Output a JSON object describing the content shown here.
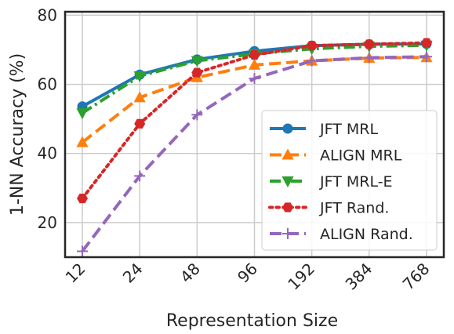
{
  "chart_data": {
    "type": "line",
    "xlabel": "Representation Size",
    "ylabel": "1-NN Accuracy (%)",
    "categories": [
      "12",
      "24",
      "48",
      "96",
      "192",
      "384",
      "768"
    ],
    "y_ticks": [
      "20",
      "40",
      "60",
      "80"
    ],
    "ylim": [
      10,
      81
    ],
    "x_scale": "log2",
    "grid": true,
    "legend_position": "lower-right",
    "series": [
      {
        "name": "JFT MRL",
        "values": [
          53.6,
          62.8,
          67.2,
          69.6,
          71.2,
          71.6,
          71.7
        ],
        "color": "#1f77b4",
        "marker": "circle",
        "linestyle": "solid"
      },
      {
        "name": "ALIGN MRL",
        "values": [
          43.2,
          56.2,
          62.0,
          65.6,
          66.8,
          67.6,
          67.8
        ],
        "color": "#ff7f0e",
        "marker": "triangle-up",
        "linestyle": "dashed"
      },
      {
        "name": "JFT MRL-E",
        "values": [
          51.7,
          62.4,
          66.8,
          68.8,
          70.3,
          71.0,
          71.3
        ],
        "color": "#2ca02c",
        "marker": "triangle-down",
        "linestyle": "dashdot"
      },
      {
        "name": "JFT Rand.",
        "values": [
          27.0,
          48.6,
          63.4,
          68.5,
          71.2,
          71.6,
          72.0
        ],
        "color": "#d62728",
        "marker": "hexagon",
        "linestyle": "dotted"
      },
      {
        "name": "ALIGN Rand.",
        "values": [
          11.7,
          33.5,
          51.2,
          61.7,
          66.8,
          67.7,
          68.0
        ],
        "color": "#9467bd",
        "marker": "plus",
        "linestyle": "dashed"
      }
    ]
  }
}
